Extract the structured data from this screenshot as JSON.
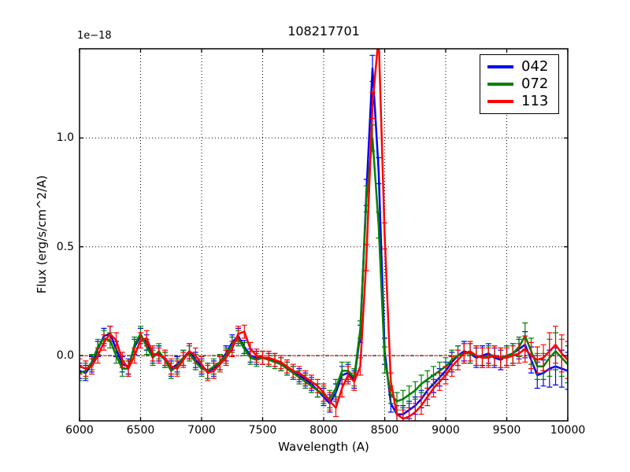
{
  "figure": {
    "title": "108217701",
    "offset_text": "1e−18",
    "xlabel": "Wavelength (A)",
    "ylabel": "Flux (erg/s/cm^2/A)",
    "background": "#ffffff",
    "axis_color": "#000000"
  },
  "chart_data": {
    "type": "line",
    "title": "108217701",
    "xlabel": "Wavelength (A)",
    "ylabel": "Flux (erg/s/cm^2/A)",
    "y_offset_label": "1e−18",
    "y_unit_factor": 1e-18,
    "xlim": [
      6000,
      10000
    ],
    "ylim": [
      -0.3,
      1.41
    ],
    "x_ticks": [
      6000,
      6500,
      7000,
      7500,
      8000,
      8500,
      9000,
      9500,
      10000
    ],
    "x_tick_labels": [
      "6000",
      "6500",
      "7000",
      "7500",
      "8000",
      "8500",
      "9000",
      "9500",
      "10000"
    ],
    "y_ticks": [
      0.0,
      0.5,
      1.0
    ],
    "y_tick_labels": [
      "0.0",
      "0.5",
      "1.0"
    ],
    "grid": true,
    "grid_style": "dotted",
    "zero_line": {
      "value": 0.0,
      "styles": [
        "black dashed",
        "red dashed"
      ]
    },
    "legend_position": "upper right",
    "marker": "none",
    "error_bars": true,
    "x_start": 6000,
    "x_step": 50,
    "errors": [
      0.035,
      0.035,
      0.035,
      0.035,
      0.035,
      0.035,
      0.035,
      0.035,
      0.035,
      0.035,
      0.035,
      0.035,
      0.035,
      0.035,
      0.035,
      0.035,
      0.035,
      0.035,
      0.035,
      0.035,
      0.035,
      0.035,
      0.035,
      0.035,
      0.035,
      0.035,
      0.035,
      0.03,
      0.03,
      0.03,
      0.03,
      0.03,
      0.03,
      0.03,
      0.03,
      0.03,
      0.03,
      0.03,
      0.03,
      0.03,
      0.04,
      0.04,
      0.04,
      0.04,
      0.04,
      0.04,
      0.04,
      0.06,
      0.06,
      0.06,
      0.06,
      0.04,
      0.04,
      0.04,
      0.04,
      0.04,
      0.04,
      0.04,
      0.04,
      0.04,
      0.04,
      0.045,
      0.045,
      0.045,
      0.045,
      0.045,
      0.045,
      0.045,
      0.045,
      0.045,
      0.045,
      0.045,
      0.045,
      0.06,
      0.06,
      0.06,
      0.06,
      0.085,
      0.085,
      0.085,
      0.085
    ],
    "series": [
      {
        "name": "042",
        "color": "#0000ff",
        "values": [
          -0.07,
          -0.08,
          -0.04,
          0.03,
          0.09,
          0.1,
          0.03,
          -0.04,
          -0.05,
          0.04,
          0.09,
          0.06,
          0.0,
          0.01,
          -0.02,
          -0.06,
          -0.04,
          -0.01,
          0.02,
          -0.02,
          -0.05,
          -0.07,
          -0.06,
          -0.03,
          0.01,
          0.06,
          0.09,
          0.04,
          0.0,
          -0.01,
          -0.01,
          -0.02,
          -0.02,
          -0.04,
          -0.06,
          -0.08,
          -0.09,
          -0.11,
          -0.13,
          -0.16,
          -0.19,
          -0.22,
          -0.17,
          -0.09,
          -0.08,
          -0.11,
          0.1,
          0.75,
          1.32,
          0.85,
          0.02,
          -0.22,
          -0.27,
          -0.27,
          -0.25,
          -0.23,
          -0.2,
          -0.16,
          -0.13,
          -0.1,
          -0.07,
          -0.03,
          0.0,
          0.02,
          0.01,
          -0.01,
          0.0,
          0.01,
          -0.01,
          -0.02,
          0.0,
          0.01,
          0.03,
          0.05,
          -0.02,
          -0.09,
          -0.08,
          -0.06,
          -0.05,
          -0.06,
          -0.07
        ]
      },
      {
        "name": "072",
        "color": "#008000",
        "values": [
          -0.08,
          -0.07,
          -0.03,
          0.04,
          0.08,
          0.07,
          0.0,
          -0.06,
          -0.06,
          0.05,
          0.1,
          0.04,
          -0.01,
          0.02,
          -0.02,
          -0.07,
          -0.05,
          -0.01,
          0.01,
          -0.03,
          -0.06,
          -0.07,
          -0.05,
          -0.03,
          0.0,
          0.05,
          0.08,
          0.03,
          -0.01,
          -0.02,
          -0.01,
          -0.02,
          -0.03,
          -0.04,
          -0.06,
          -0.08,
          -0.1,
          -0.12,
          -0.14,
          -0.16,
          -0.18,
          -0.2,
          -0.15,
          -0.07,
          -0.07,
          -0.1,
          0.12,
          0.72,
          1.0,
          0.6,
          -0.02,
          -0.18,
          -0.21,
          -0.2,
          -0.18,
          -0.16,
          -0.13,
          -0.11,
          -0.09,
          -0.07,
          -0.05,
          -0.02,
          0.0,
          0.01,
          0.01,
          0.0,
          -0.01,
          0.0,
          0.0,
          -0.01,
          0.0,
          0.01,
          0.04,
          0.09,
          0.02,
          -0.05,
          -0.05,
          -0.01,
          0.02,
          -0.01,
          -0.04
        ]
      },
      {
        "name": "113",
        "color": "#ff0000",
        "values": [
          -0.05,
          -0.06,
          -0.05,
          0.0,
          0.06,
          0.1,
          0.07,
          -0.02,
          -0.06,
          0.0,
          0.07,
          0.08,
          0.01,
          0.0,
          -0.01,
          -0.05,
          -0.06,
          -0.02,
          0.02,
          0.0,
          -0.04,
          -0.08,
          -0.07,
          -0.04,
          -0.01,
          0.03,
          0.1,
          0.11,
          0.03,
          0.0,
          -0.01,
          -0.01,
          -0.02,
          -0.03,
          -0.05,
          -0.07,
          -0.08,
          -0.1,
          -0.12,
          -0.14,
          -0.17,
          -0.21,
          -0.24,
          -0.15,
          -0.09,
          -0.12,
          -0.05,
          0.45,
          1.15,
          1.47,
          0.55,
          -0.12,
          -0.27,
          -0.29,
          -0.28,
          -0.26,
          -0.23,
          -0.19,
          -0.15,
          -0.12,
          -0.09,
          -0.05,
          -0.02,
          0.01,
          0.02,
          0.0,
          -0.01,
          -0.01,
          0.0,
          -0.01,
          -0.01,
          0.0,
          0.01,
          0.03,
          0.0,
          -0.02,
          -0.01,
          0.02,
          0.05,
          0.01,
          -0.02
        ]
      }
    ]
  }
}
